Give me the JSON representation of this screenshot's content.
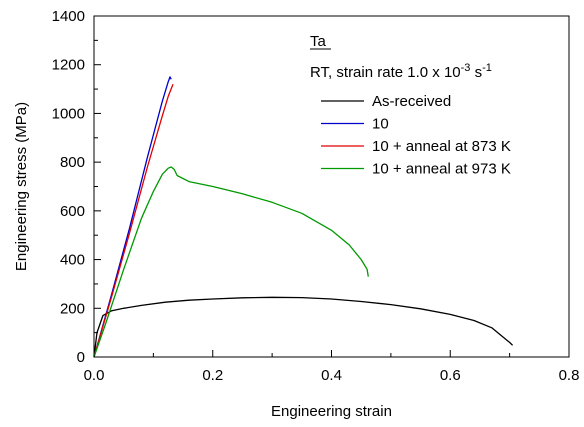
{
  "chart_data": {
    "type": "line",
    "title": "",
    "xlabel": "Engineering strain",
    "ylabel": "Engineering stress (MPa)",
    "xlim": [
      0,
      0.8
    ],
    "ylim": [
      0,
      1400
    ],
    "xticks": [
      0.0,
      0.2,
      0.4,
      0.6,
      0.8
    ],
    "yticks": [
      0,
      200,
      400,
      600,
      800,
      1000,
      1200,
      1400
    ],
    "xtick_labels": [
      "0.0",
      "0.2",
      "0.4",
      "0.6",
      "0.8"
    ],
    "ytick_labels": [
      "0",
      "200",
      "400",
      "600",
      "800",
      "1000",
      "1200",
      "1400"
    ],
    "grid": false,
    "legend_position": "top-right",
    "annotations": {
      "material": "Ta",
      "condition_prefix": "RT, strain rate 1.0 x 10",
      "condition_exponent": "-3",
      "condition_unit": " s",
      "condition_unit_exponent": "-1"
    },
    "series": [
      {
        "name": "As-received",
        "color": "#000000",
        "points": [
          [
            0,
            0
          ],
          [
            0.005,
            100
          ],
          [
            0.015,
            170
          ],
          [
            0.03,
            190
          ],
          [
            0.05,
            200
          ],
          [
            0.08,
            212
          ],
          [
            0.12,
            225
          ],
          [
            0.16,
            233
          ],
          [
            0.2,
            238
          ],
          [
            0.25,
            243
          ],
          [
            0.3,
            245
          ],
          [
            0.35,
            244
          ],
          [
            0.4,
            238
          ],
          [
            0.45,
            228
          ],
          [
            0.5,
            215
          ],
          [
            0.55,
            198
          ],
          [
            0.6,
            175
          ],
          [
            0.64,
            150
          ],
          [
            0.67,
            120
          ],
          [
            0.685,
            90
          ],
          [
            0.7,
            60
          ],
          [
            0.705,
            48
          ]
        ]
      },
      {
        "name": "10",
        "color": "#0000cc",
        "points": [
          [
            0,
            0
          ],
          [
            0.03,
            260
          ],
          [
            0.06,
            530
          ],
          [
            0.09,
            820
          ],
          [
            0.115,
            1050
          ],
          [
            0.125,
            1130
          ],
          [
            0.128,
            1150
          ],
          [
            0.13,
            1140
          ]
        ]
      },
      {
        "name": "10 + anneal at 873 K",
        "color": "#e00000",
        "points": [
          [
            0,
            0
          ],
          [
            0.03,
            250
          ],
          [
            0.06,
            510
          ],
          [
            0.09,
            780
          ],
          [
            0.115,
            990
          ],
          [
            0.125,
            1070
          ],
          [
            0.133,
            1120
          ]
        ]
      },
      {
        "name": "10 + anneal at 973 K",
        "color": "#009900",
        "points": [
          [
            0,
            0
          ],
          [
            0.02,
            140
          ],
          [
            0.05,
            360
          ],
          [
            0.08,
            570
          ],
          [
            0.1,
            680
          ],
          [
            0.115,
            750
          ],
          [
            0.125,
            775
          ],
          [
            0.13,
            780
          ],
          [
            0.135,
            770
          ],
          [
            0.14,
            745
          ],
          [
            0.16,
            720
          ],
          [
            0.2,
            700
          ],
          [
            0.25,
            670
          ],
          [
            0.3,
            635
          ],
          [
            0.35,
            590
          ],
          [
            0.4,
            520
          ],
          [
            0.43,
            460
          ],
          [
            0.45,
            400
          ],
          [
            0.46,
            360
          ],
          [
            0.462,
            330
          ]
        ]
      }
    ]
  }
}
